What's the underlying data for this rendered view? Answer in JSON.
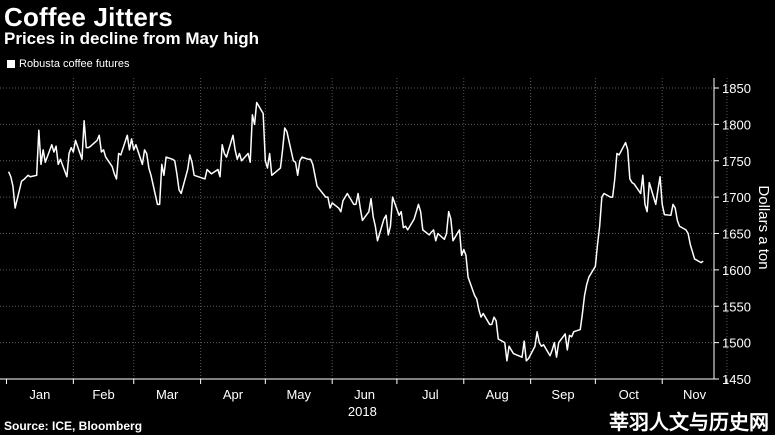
{
  "chart_data": {
    "type": "line",
    "title": "Coffee Jitters",
    "subtitle": "Prices in decline from May high",
    "ylabel": "Dollars a ton",
    "xlabel": "2018",
    "ylim": [
      1450,
      1850
    ],
    "y_ticks": [
      1450,
      1500,
      1550,
      1600,
      1650,
      1700,
      1750,
      1800,
      1850
    ],
    "x_ticks": [
      "Jan",
      "Feb",
      "Mar",
      "Apr",
      "May",
      "Jun",
      "Jul",
      "Aug",
      "Sep",
      "Oct",
      "Nov"
    ],
    "grid": true,
    "legend": "top-left",
    "series": [
      {
        "name": "Robusta coffee futures",
        "color": "#ffffff",
        "x": [
          "2018-01-02",
          "2018-01-03",
          "2018-01-04",
          "2018-01-05",
          "2018-01-08",
          "2018-01-09",
          "2018-01-10",
          "2018-01-11",
          "2018-01-12",
          "2018-01-15",
          "2018-01-16",
          "2018-01-17",
          "2018-01-18",
          "2018-01-19",
          "2018-01-22",
          "2018-01-23",
          "2018-01-24",
          "2018-01-25",
          "2018-01-26",
          "2018-01-29",
          "2018-01-30",
          "2018-01-31",
          "2018-02-01",
          "2018-02-02",
          "2018-02-05",
          "2018-02-06",
          "2018-02-07",
          "2018-02-08",
          "2018-02-09",
          "2018-02-12",
          "2018-02-13",
          "2018-02-14",
          "2018-02-15",
          "2018-02-16",
          "2018-02-19",
          "2018-02-20",
          "2018-02-21",
          "2018-02-22",
          "2018-02-23",
          "2018-02-26",
          "2018-02-27",
          "2018-02-28",
          "2018-03-01",
          "2018-03-02",
          "2018-03-05",
          "2018-03-06",
          "2018-03-07",
          "2018-03-08",
          "2018-03-09",
          "2018-03-12",
          "2018-03-13",
          "2018-03-14",
          "2018-03-15",
          "2018-03-16",
          "2018-03-19",
          "2018-03-20",
          "2018-03-21",
          "2018-03-22",
          "2018-03-23",
          "2018-03-26",
          "2018-03-27",
          "2018-03-28",
          "2018-03-29",
          "2018-04-03",
          "2018-04-04",
          "2018-04-05",
          "2018-04-06",
          "2018-04-09",
          "2018-04-10",
          "2018-04-11",
          "2018-04-12",
          "2018-04-13",
          "2018-04-16",
          "2018-04-17",
          "2018-04-18",
          "2018-04-19",
          "2018-04-20",
          "2018-04-23",
          "2018-04-24",
          "2018-04-25",
          "2018-04-26",
          "2018-04-27",
          "2018-04-30",
          "2018-05-01",
          "2018-05-02",
          "2018-05-03",
          "2018-05-04",
          "2018-05-08",
          "2018-05-09",
          "2018-05-10",
          "2018-05-11",
          "2018-05-14",
          "2018-05-15",
          "2018-05-16",
          "2018-05-17",
          "2018-05-18",
          "2018-05-21",
          "2018-05-22",
          "2018-05-23",
          "2018-05-24",
          "2018-05-25",
          "2018-05-29",
          "2018-05-30",
          "2018-05-31",
          "2018-06-01",
          "2018-06-04",
          "2018-06-05",
          "2018-06-06",
          "2018-06-07",
          "2018-06-08",
          "2018-06-11",
          "2018-06-12",
          "2018-06-13",
          "2018-06-14",
          "2018-06-15",
          "2018-06-18",
          "2018-06-19",
          "2018-06-20",
          "2018-06-21",
          "2018-06-22",
          "2018-06-25",
          "2018-06-26",
          "2018-06-27",
          "2018-06-28",
          "2018-06-29",
          "2018-07-02",
          "2018-07-03",
          "2018-07-04",
          "2018-07-05",
          "2018-07-06",
          "2018-07-09",
          "2018-07-10",
          "2018-07-11",
          "2018-07-12",
          "2018-07-13",
          "2018-07-16",
          "2018-07-17",
          "2018-07-18",
          "2018-07-19",
          "2018-07-20",
          "2018-07-23",
          "2018-07-24",
          "2018-07-25",
          "2018-07-26",
          "2018-07-27",
          "2018-07-30",
          "2018-07-31",
          "2018-08-01",
          "2018-08-02",
          "2018-08-03",
          "2018-08-06",
          "2018-08-07",
          "2018-08-08",
          "2018-08-09",
          "2018-08-10",
          "2018-08-13",
          "2018-08-14",
          "2018-08-15",
          "2018-08-16",
          "2018-08-17",
          "2018-08-20",
          "2018-08-21",
          "2018-08-22",
          "2018-08-23",
          "2018-08-24",
          "2018-08-28",
          "2018-08-29",
          "2018-08-30",
          "2018-08-31",
          "2018-09-03",
          "2018-09-04",
          "2018-09-05",
          "2018-09-06",
          "2018-09-07",
          "2018-09-10",
          "2018-09-11",
          "2018-09-12",
          "2018-09-13",
          "2018-09-14",
          "2018-09-17",
          "2018-09-18",
          "2018-09-19",
          "2018-09-20",
          "2018-09-21",
          "2018-09-24",
          "2018-09-25",
          "2018-09-26",
          "2018-09-27",
          "2018-09-28",
          "2018-10-01",
          "2018-10-02",
          "2018-10-03",
          "2018-10-04",
          "2018-10-05",
          "2018-10-08",
          "2018-10-09",
          "2018-10-10",
          "2018-10-11",
          "2018-10-12",
          "2018-10-15",
          "2018-10-16",
          "2018-10-17",
          "2018-10-18",
          "2018-10-19",
          "2018-10-22",
          "2018-10-23",
          "2018-10-24",
          "2018-10-25",
          "2018-10-26",
          "2018-10-29",
          "2018-10-30",
          "2018-10-31",
          "2018-11-01",
          "2018-11-02",
          "2018-11-05",
          "2018-11-06",
          "2018-11-07",
          "2018-11-08",
          "2018-11-09",
          "2018-11-12",
          "2018-11-13",
          "2018-11-14",
          "2018-11-15",
          "2018-11-16",
          "2018-11-19",
          "2018-11-20"
        ],
        "values": [
          1735,
          1728,
          1715,
          1685,
          1722,
          1724,
          1727,
          1730,
          1728,
          1730,
          1792,
          1745,
          1765,
          1748,
          1772,
          1762,
          1770,
          1745,
          1752,
          1728,
          1760,
          1768,
          1762,
          1778,
          1752,
          1805,
          1768,
          1768,
          1770,
          1778,
          1785,
          1762,
          1765,
          1755,
          1742,
          1732,
          1725,
          1760,
          1758,
          1785,
          1765,
          1780,
          1765,
          1772,
          1745,
          1765,
          1760,
          1740,
          1730,
          1690,
          1690,
          1745,
          1730,
          1755,
          1752,
          1750,
          1732,
          1710,
          1705,
          1738,
          1758,
          1748,
          1730,
          1725,
          1738,
          1735,
          1732,
          1738,
          1728,
          1772,
          1760,
          1755,
          1785,
          1765,
          1752,
          1760,
          1750,
          1760,
          1748,
          1813,
          1800,
          1830,
          1815,
          1750,
          1740,
          1760,
          1730,
          1740,
          1765,
          1795,
          1790,
          1750,
          1748,
          1730,
          1750,
          1755,
          1752,
          1752,
          1745,
          1730,
          1715,
          1700,
          1700,
          1685,
          1692,
          1685,
          1680,
          1695,
          1700,
          1705,
          1690,
          1690,
          1705,
          1685,
          1668,
          1680,
          1698,
          1673,
          1660,
          1640,
          1670,
          1675,
          1648,
          1660,
          1700,
          1675,
          1680,
          1658,
          1660,
          1655,
          1670,
          1680,
          1690,
          1680,
          1655,
          1648,
          1652,
          1655,
          1640,
          1650,
          1642,
          1650,
          1680,
          1670,
          1640,
          1655,
          1620,
          1628,
          1620,
          1590,
          1565,
          1560,
          1545,
          1535,
          1540,
          1525,
          1525,
          1535,
          1530,
          1505,
          1500,
          1475,
          1495,
          1490,
          1485,
          1480,
          1502,
          1475,
          1478,
          1495,
          1515,
          1500,
          1495,
          1497,
          1482,
          1490,
          1500,
          1480,
          1500,
          1512,
          1490,
          1510,
          1508,
          1515,
          1518,
          1540,
          1565,
          1580,
          1590,
          1605,
          1635,
          1660,
          1700,
          1705,
          1700,
          1700,
          1725,
          1760,
          1758,
          1775,
          1765,
          1725,
          1720,
          1718,
          1705,
          1730,
          1690,
          1680,
          1720,
          1690,
          1710,
          1728,
          1690,
          1676,
          1675,
          1690,
          1685,
          1668,
          1660,
          1655,
          1650,
          1635,
          1625,
          1615,
          1610,
          1612
        ]
      }
    ]
  },
  "legend_label": "Robusta coffee futures",
  "source": "Source: ICE, Bloomberg",
  "watermark": "莘羽人文与历史网"
}
